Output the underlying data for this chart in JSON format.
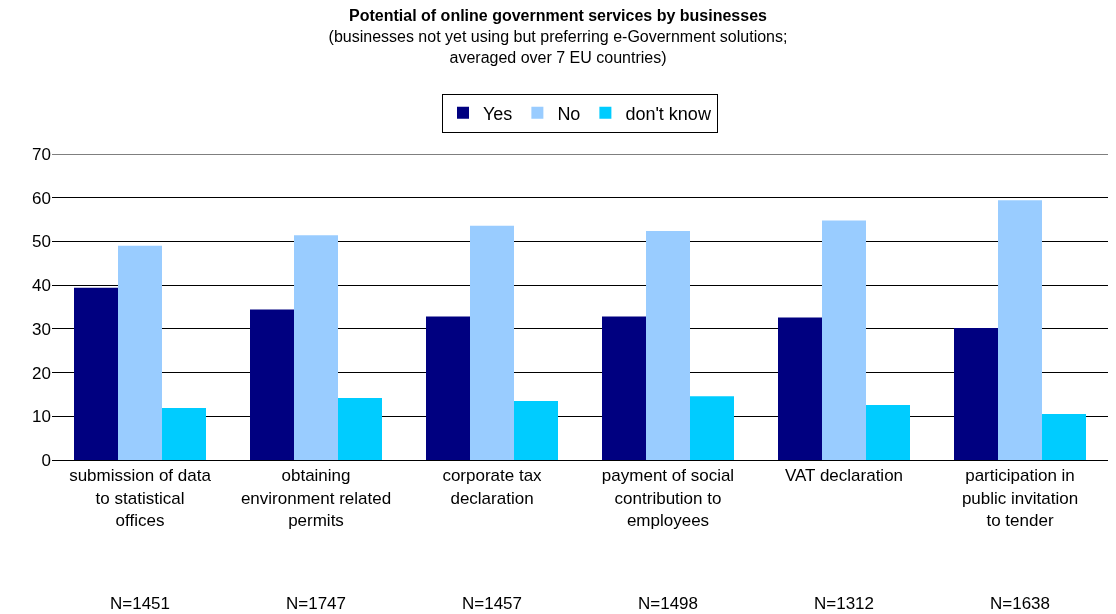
{
  "chart_data": {
    "type": "bar",
    "title": "Potential of online government services by businesses",
    "subtitle": "(businesses not yet using but preferring e-Government solutions; averaged over 7 EU countries)",
    "categories": [
      "submission of data to statistical offices",
      "obtaining environment related permits",
      "corporate tax declaration",
      "payment of social contribution to employees",
      "VAT declaration",
      "participation in public invitation to tender"
    ],
    "series": [
      {
        "name": "Yes",
        "color": "#000080",
        "values": [
          39.4,
          34.4,
          32.8,
          32.8,
          32.6,
          30.2
        ]
      },
      {
        "name": "No",
        "color": "#99ccff",
        "values": [
          49.0,
          51.4,
          53.6,
          52.4,
          54.8,
          59.4
        ]
      },
      {
        "name": "don't know",
        "color": "#00ccff",
        "values": [
          11.9,
          14.2,
          13.5,
          14.6,
          12.6,
          10.5
        ]
      }
    ],
    "ylim": [
      0,
      70
    ],
    "yticks": [
      0,
      10,
      20,
      30,
      40,
      50,
      60,
      70
    ],
    "grid": "y",
    "legend": "top",
    "annotations": [
      "N=1451",
      "N=1747",
      "N=1457",
      "N=1498",
      "N=1312",
      "N=1638"
    ]
  }
}
